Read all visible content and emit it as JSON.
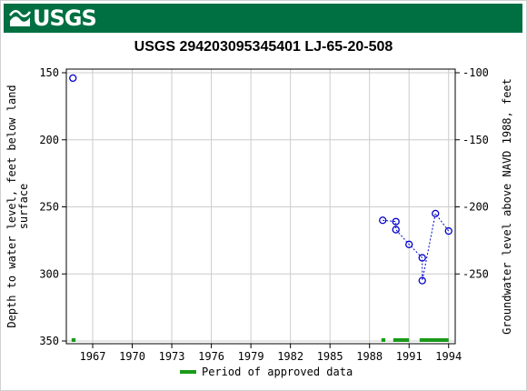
{
  "header": {
    "logo_text": "USGS",
    "brand_color": "#006f41"
  },
  "chart_data": {
    "type": "scatter",
    "title": "USGS 294203095345401 LJ-65-20-508",
    "ylabel_left": [
      "Depth to water level, feet below land",
      "surface"
    ],
    "ylabel_right": "Groundwater level above NAVD 1988, feet",
    "x_ticks": [
      "1967",
      "1970",
      "1973",
      "1976",
      "1979",
      "1982",
      "1985",
      "1988",
      "1991",
      "1994"
    ],
    "xlim": [
      1965.0,
      1994.5
    ],
    "y_ticks_left": [
      "150",
      "200",
      "250",
      "300",
      "350"
    ],
    "ylim_left": [
      150,
      350
    ],
    "y_ticks_right": [
      "-100",
      "-150",
      "-200",
      "-250"
    ],
    "datum_offset": 50,
    "grid": true,
    "series": [
      {
        "marker_color": "#0000cc",
        "points": [
          {
            "x": 1965.5,
            "y": 154
          },
          {
            "x": 1989.0,
            "y": 260
          },
          {
            "x": 1990.0,
            "y": 261
          },
          {
            "x": 1990.0,
            "y": 267
          },
          {
            "x": 1991.0,
            "y": 278
          },
          {
            "x": 1992.0,
            "y": 288
          },
          {
            "x": 1992.0,
            "y": 305
          },
          {
            "x": 1993.0,
            "y": 255
          },
          {
            "x": 1994.0,
            "y": 268
          }
        ],
        "connected_from_index": 1
      }
    ],
    "approved_periods": [
      [
        1965.4,
        1965.7
      ],
      [
        1988.9,
        1989.2
      ],
      [
        1989.8,
        1991.0
      ],
      [
        1991.8,
        1994.0
      ]
    ],
    "approved_color": "#1a9a1a",
    "legend": {
      "label": "Period of approved data",
      "placement": "bottom-center"
    }
  }
}
